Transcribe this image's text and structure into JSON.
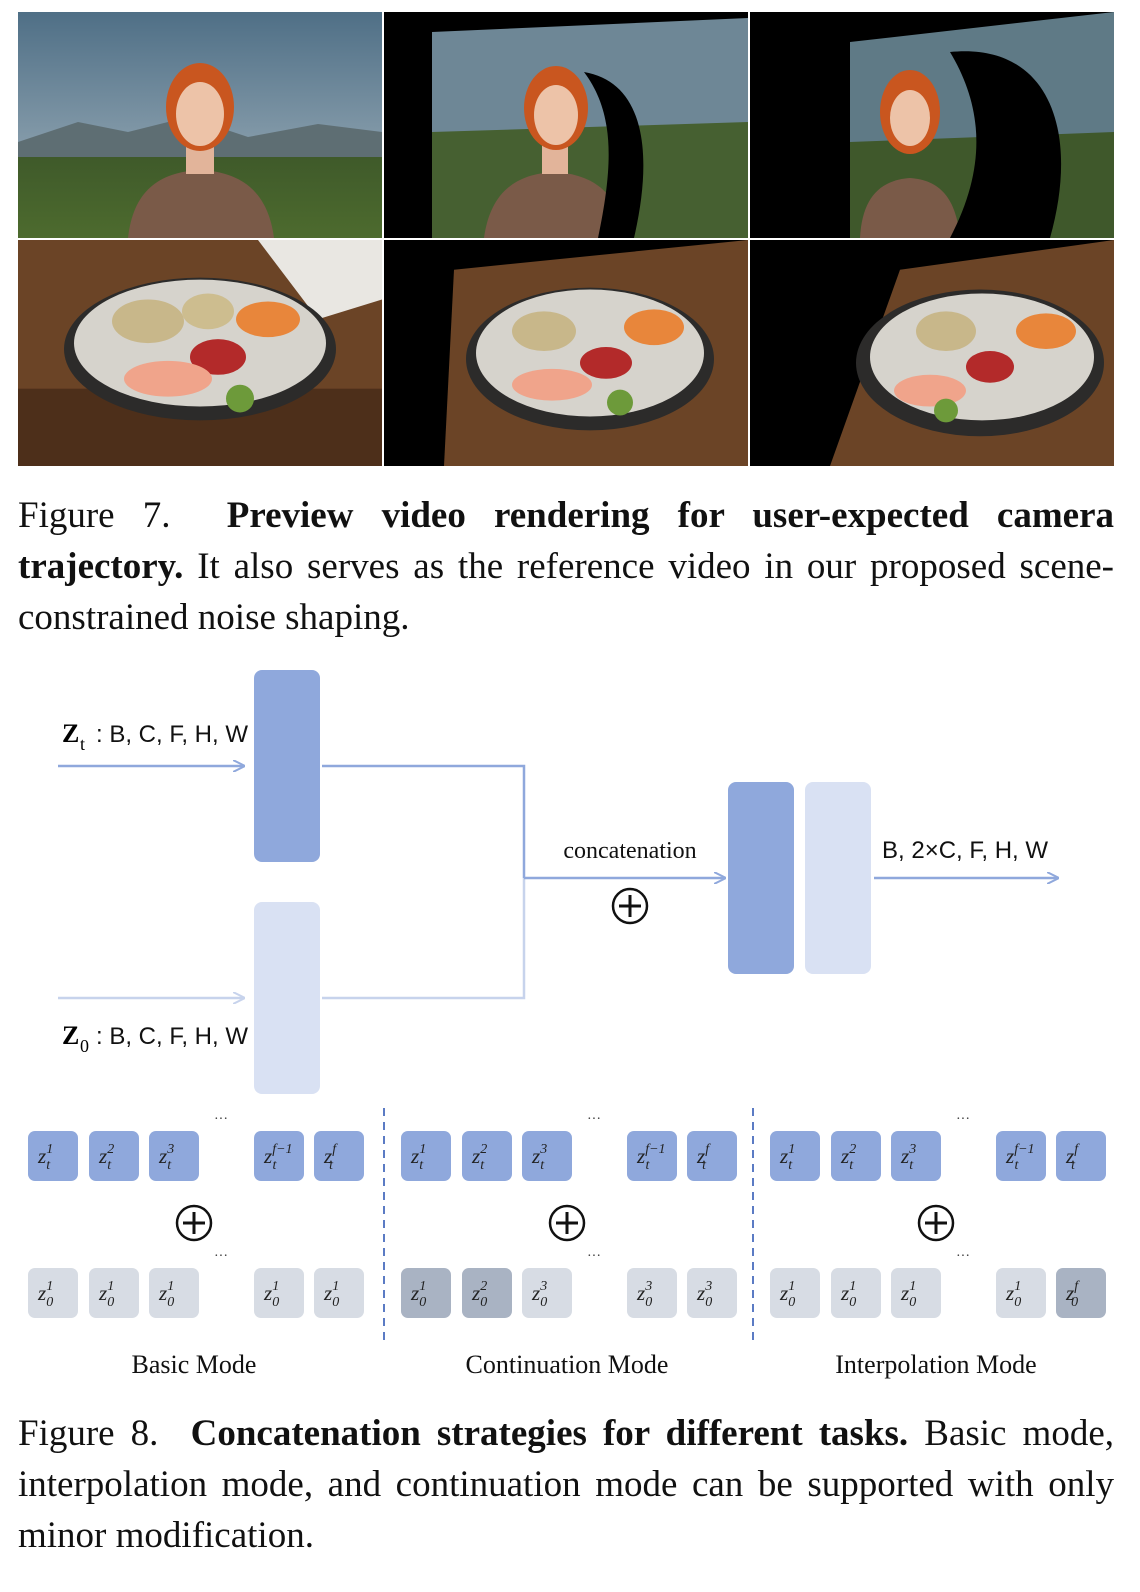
{
  "figure7": {
    "label": "Figure 7.",
    "title": "Preview video rendering for user-expected camera trajectory.",
    "text": "It also serves as the reference video in our proposed scene-constrained noise shaping."
  },
  "diagram": {
    "zt_label": "Z",
    "zt_sub": "t",
    "zt_dims": ": B, C, F, H, W",
    "z0_label": "Z",
    "z0_sub": "0",
    "z0_dims": ": B, C, F, H, W",
    "concat_label": "concatenation",
    "output_dims": "B, 2×C, F, H, W",
    "ellipsis": "···",
    "modes": [
      {
        "name": "Basic Mode",
        "top": [
          {
            "s": "1"
          },
          {
            "s": "2"
          },
          {
            "s": "3"
          },
          {
            "s": "f−1"
          },
          {
            "s": "f"
          }
        ],
        "bottom": [
          {
            "s": "1",
            "dark": false
          },
          {
            "s": "1",
            "dark": false
          },
          {
            "s": "1",
            "dark": false
          },
          {
            "s": "1",
            "dark": false
          },
          {
            "s": "1",
            "dark": false
          }
        ]
      },
      {
        "name": "Continuation Mode",
        "top": [
          {
            "s": "1"
          },
          {
            "s": "2"
          },
          {
            "s": "3"
          },
          {
            "s": "f−1"
          },
          {
            "s": "f"
          }
        ],
        "bottom": [
          {
            "s": "1",
            "dark": true
          },
          {
            "s": "2",
            "dark": true
          },
          {
            "s": "3",
            "dark": false
          },
          {
            "s": "3",
            "dark": false
          },
          {
            "s": "3",
            "dark": false
          }
        ]
      },
      {
        "name": "Interpolation Mode",
        "top": [
          {
            "s": "1"
          },
          {
            "s": "2"
          },
          {
            "s": "3"
          },
          {
            "s": "f−1"
          },
          {
            "s": "f"
          }
        ],
        "bottom": [
          {
            "s": "1",
            "dark": false
          },
          {
            "s": "1",
            "dark": false
          },
          {
            "s": "1",
            "dark": false
          },
          {
            "s": "1",
            "dark": false
          },
          {
            "s": "f",
            "dark": true
          }
        ]
      }
    ],
    "colors": {
      "dark_blue": "#8fa8dc",
      "light_blue": "#d9e1f3",
      "gray_light": "#d7dce4",
      "gray_dark": "#a9b3c3"
    }
  },
  "figure8": {
    "label": "Figure 8.",
    "title": "Concatenation strategies for different tasks.",
    "text": "Basic mode, interpolation mode, and continuation mode can be supported with only minor modification."
  }
}
